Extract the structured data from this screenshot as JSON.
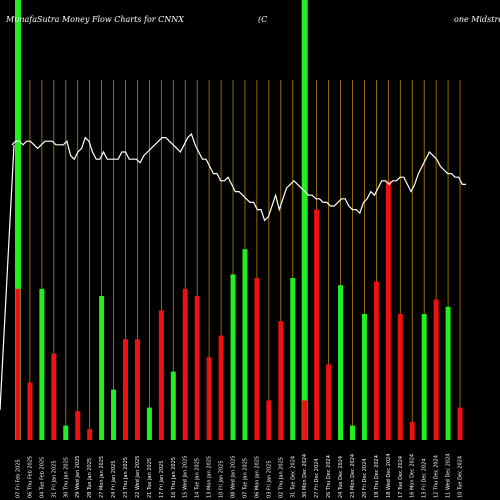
{
  "chart_data": {
    "type": "bar",
    "title_parts": {
      "left": "MunafaSutra  Money Flow  Charts for CNNX",
      "middle": "(C",
      "right": "one  Midstre"
    },
    "colors": {
      "background": "#000000",
      "up": "#22ee22",
      "down": "#ee1111",
      "grid": "#b8860b",
      "price_line": "#ffffff",
      "highlight": "#22ee22"
    },
    "bars": [
      {
        "dir": "down",
        "value": 42
      },
      {
        "dir": "down",
        "value": 16
      },
      {
        "dir": "up",
        "value": 42
      },
      {
        "dir": "down",
        "value": 24
      },
      {
        "dir": "up",
        "value": 4
      },
      {
        "dir": "down",
        "value": 8
      },
      {
        "dir": "down",
        "value": 3
      },
      {
        "dir": "up",
        "value": 40
      },
      {
        "dir": "up",
        "value": 14
      },
      {
        "dir": "down",
        "value": 28
      },
      {
        "dir": "down",
        "value": 28
      },
      {
        "dir": "up",
        "value": 9
      },
      {
        "dir": "down",
        "value": 36
      },
      {
        "dir": "up",
        "value": 19
      },
      {
        "dir": "down",
        "value": 42
      },
      {
        "dir": "down",
        "value": 40
      },
      {
        "dir": "down",
        "value": 23
      },
      {
        "dir": "down",
        "value": 29
      },
      {
        "dir": "up",
        "value": 46
      },
      {
        "dir": "up",
        "value": 53
      },
      {
        "dir": "down",
        "value": 45
      },
      {
        "dir": "down",
        "value": 11
      },
      {
        "dir": "down",
        "value": 33
      },
      {
        "dir": "up",
        "value": 45
      },
      {
        "dir": "down",
        "value": 11
      },
      {
        "dir": "down",
        "value": 64
      },
      {
        "dir": "down",
        "value": 21
      },
      {
        "dir": "up",
        "value": 43
      },
      {
        "dir": "up",
        "value": 4
      },
      {
        "dir": "up",
        "value": 35
      },
      {
        "dir": "down",
        "value": 44
      },
      {
        "dir": "down",
        "value": 72
      },
      {
        "dir": "down",
        "value": 35
      },
      {
        "dir": "down",
        "value": 5
      },
      {
        "dir": "up",
        "value": 35
      },
      {
        "dir": "down",
        "value": 39
      },
      {
        "dir": "up",
        "value": 37
      },
      {
        "dir": "down",
        "value": 9
      }
    ],
    "price_line": [
      82,
      83,
      83,
      82,
      83,
      83,
      82,
      81,
      82,
      83,
      83,
      83,
      82,
      82,
      82,
      83,
      79,
      78,
      80,
      81,
      84,
      83,
      80,
      78,
      78,
      80,
      78,
      78,
      78,
      78,
      80,
      80,
      78,
      78,
      78,
      77,
      79,
      80,
      81,
      82,
      83,
      84,
      84,
      83,
      82,
      81,
      80,
      82,
      84,
      85,
      82,
      80,
      78,
      78,
      76,
      74,
      74,
      72,
      72,
      73,
      71,
      69,
      69,
      68,
      67,
      66,
      66,
      64,
      64,
      61,
      62,
      65,
      68,
      64,
      67,
      70,
      71,
      72,
      71,
      70,
      69,
      68,
      68,
      67,
      67,
      66,
      66,
      65,
      65,
      66,
      67,
      67,
      65,
      64,
      64,
      63,
      66,
      67,
      69,
      68,
      70,
      72,
      72,
      71,
      72,
      72,
      73,
      73,
      71,
      69,
      71,
      74,
      76,
      78,
      80,
      79,
      78,
      76,
      75,
      74,
      74,
      73,
      73,
      71,
      71
    ],
    "highlights": [
      0,
      24
    ],
    "ylim": [
      0,
      100
    ],
    "x_tick_labels": [
      "07 Fri Feb 2025",
      "06 Thu Feb 2025",
      "04 Tue Feb 2025",
      "31 Fri Jan 2025",
      "30 Thu Jan 2025",
      "29 Wed Jan 2025",
      "28 Tue Jan 2025",
      "27 Mon Jan 2025",
      "24 Fri Jan 2025",
      "23 Thu Jan 2025",
      "22 Wed Jan 2025",
      "21 Tue Jan 2025",
      "17 Fri Jan 2025",
      "16 Thu Jan 2025",
      "15 Wed Jan 2025",
      "14 Tue Jan 2025",
      "13 Mon Jan 2025",
      "10 Fri Jan 2025",
      "08 Wed Jan 2025",
      "07 Tue Jan 2025",
      "06 Mon Jan 2025",
      "03 Fri Jan 2025",
      "02 Thu Jan 2025",
      "31 Tue Dec 2024",
      "30 Mon Dec 2024",
      "27 Fri Dec 2024",
      "26 Thu Dec 2024",
      "24 Tue Dec 2024",
      "23 Mon Dec 2024",
      "20 Fri Dec 2024",
      "19 Thu Dec 2024",
      "18 Wed Dec 2024",
      "17 Tue Dec 2024",
      "16 Mon Dec 2024",
      "13 Fri Dec 2024",
      "12 Thu Dec 2024",
      "11 Wed Dec 2024",
      "10 Tue Dec 2024"
    ]
  }
}
